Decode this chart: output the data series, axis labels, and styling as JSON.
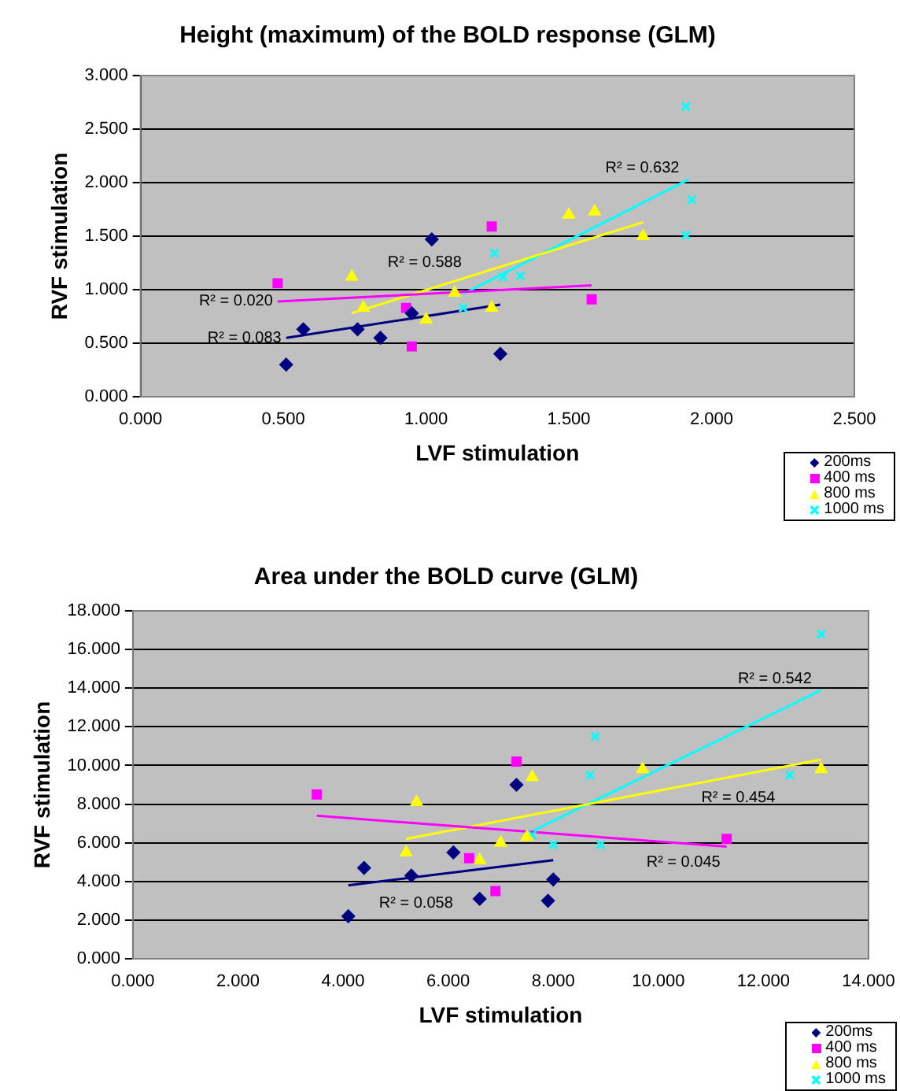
{
  "chart_data": [
    {
      "type": "scatter",
      "title": "Height (maximum) of the BOLD response (GLM)",
      "xlabel": "LVF stimulation",
      "ylabel": "RVF stimulation",
      "xlim": [
        0,
        2.5
      ],
      "xticks": [
        {
          "value": 0,
          "label": "0.000"
        },
        {
          "value": 0.5,
          "label": "0.500"
        },
        {
          "value": 1,
          "label": "1.000"
        },
        {
          "value": 1.5,
          "label": "1.500"
        },
        {
          "value": 2,
          "label": "2.000"
        },
        {
          "value": 2.5,
          "label": "2.500"
        }
      ],
      "ylim": [
        0,
        3
      ],
      "yticks": [
        {
          "value": 0,
          "label": "0.000"
        },
        {
          "value": 0.5,
          "label": "0.500"
        },
        {
          "value": 1,
          "label": "1.000"
        },
        {
          "value": 1.5,
          "label": "1.500"
        },
        {
          "value": 2,
          "label": "2.000"
        },
        {
          "value": 2.5,
          "label": "2.500"
        },
        {
          "value": 3,
          "label": "3.000"
        }
      ],
      "grid": "y",
      "legend": "bottom right",
      "series": [
        {
          "name": "200ms",
          "color": "#000080",
          "marker": "diamond",
          "x": [
            0.51,
            0.57,
            0.76,
            0.84,
            0.95,
            1.02,
            1.26
          ],
          "values": [
            0.3,
            0.63,
            0.63,
            0.55,
            0.78,
            1.47,
            0.4
          ]
        },
        {
          "name": "400 ms",
          "color": "#ff00ff",
          "marker": "square",
          "x": [
            0.48,
            0.93,
            0.95,
            1.23,
            1.58
          ],
          "values": [
            1.06,
            0.83,
            0.47,
            1.59,
            0.91
          ]
        },
        {
          "name": "800 ms",
          "color": "#ffff00",
          "marker": "triangle",
          "x": [
            0.74,
            0.78,
            1.0,
            1.1,
            1.23,
            1.5,
            1.59,
            1.76
          ],
          "values": [
            1.12,
            0.83,
            0.72,
            0.97,
            0.83,
            1.7,
            1.73,
            1.5
          ]
        },
        {
          "name": "1000 ms",
          "color": "#00ffff",
          "marker": "cross",
          "x": [
            1.13,
            1.24,
            1.27,
            1.33,
            1.91,
            1.93,
            1.91
          ],
          "values": [
            0.83,
            1.34,
            1.12,
            1.13,
            2.71,
            1.84,
            1.51
          ]
        },
        {
          "type": "line",
          "color": "#000080",
          "marker": "none",
          "x": [
            0.51,
            1.26
          ],
          "values": [
            0.55,
            0.86
          ]
        },
        {
          "type": "line",
          "color": "#ff00ff",
          "marker": "none",
          "x": [
            0.48,
            1.58
          ],
          "values": [
            0.89,
            1.04
          ]
        },
        {
          "type": "line",
          "color": "#ffff00",
          "marker": "none",
          "x": [
            0.74,
            1.76
          ],
          "values": [
            0.78,
            1.63
          ]
        },
        {
          "type": "line",
          "color": "#00ffff",
          "marker": "none",
          "x": [
            1.13,
            1.92
          ],
          "values": [
            0.96,
            2.03
          ]
        }
      ],
      "annotations": [
        "R² = 0.083",
        "R² = 0.020",
        "R² = 0.588",
        "R² = 0.632"
      ]
    },
    {
      "type": "scatter",
      "title": "Area under the BOLD curve (GLM)",
      "xlabel": "LVF stimulation",
      "ylabel": "RVF stimulation",
      "xlim": [
        0,
        14
      ],
      "xticks": [
        {
          "value": 0,
          "label": "0.000"
        },
        {
          "value": 2,
          "label": "2.000"
        },
        {
          "value": 4,
          "label": "4.000"
        },
        {
          "value": 6,
          "label": "6.000"
        },
        {
          "value": 8,
          "label": "8.000"
        },
        {
          "value": 10,
          "label": "10.000"
        },
        {
          "value": 12,
          "label": "12.000"
        },
        {
          "value": 14,
          "label": "14.000"
        }
      ],
      "ylim": [
        0,
        18
      ],
      "yticks": [
        {
          "value": 0,
          "label": "0.000"
        },
        {
          "value": 2,
          "label": "2.000"
        },
        {
          "value": 4,
          "label": "4.000"
        },
        {
          "value": 6,
          "label": "6.000"
        },
        {
          "value": 8,
          "label": "8.000"
        },
        {
          "value": 10,
          "label": "10.000"
        },
        {
          "value": 12,
          "label": "12.000"
        },
        {
          "value": 14,
          "label": "14.000"
        },
        {
          "value": 16,
          "label": "16.000"
        },
        {
          "value": 18,
          "label": "18.000"
        }
      ],
      "grid": "y",
      "legend": "bottom right",
      "series": [
        {
          "name": "200ms",
          "color": "#000080",
          "marker": "diamond",
          "x": [
            4.1,
            4.4,
            5.3,
            6.1,
            6.6,
            7.3,
            7.9,
            8.0
          ],
          "values": [
            2.2,
            4.7,
            4.3,
            5.5,
            3.1,
            9.0,
            3.0,
            4.1
          ]
        },
        {
          "name": "400 ms",
          "color": "#ff00ff",
          "marker": "square",
          "x": [
            3.5,
            6.4,
            6.9,
            7.3,
            11.3
          ],
          "values": [
            8.5,
            5.2,
            3.5,
            10.2,
            6.2
          ]
        },
        {
          "name": "800 ms",
          "color": "#ffff00",
          "marker": "triangle",
          "x": [
            5.2,
            5.4,
            6.6,
            7.0,
            7.5,
            7.6,
            9.7,
            13.1
          ],
          "values": [
            5.5,
            8.1,
            5.1,
            6.0,
            6.3,
            9.4,
            9.8,
            9.8
          ]
        },
        {
          "name": "1000 ms",
          "color": "#00ffff",
          "marker": "cross",
          "x": [
            7.6,
            8.0,
            8.8,
            8.7,
            8.9,
            12.5,
            13.1
          ],
          "values": [
            6.4,
            5.9,
            11.5,
            9.5,
            5.9,
            9.5,
            16.8
          ]
        },
        {
          "type": "line",
          "color": "#000080",
          "marker": "none",
          "x": [
            4.1,
            8.0
          ],
          "values": [
            3.8,
            5.1
          ]
        },
        {
          "type": "line",
          "color": "#ff00ff",
          "marker": "none",
          "x": [
            3.5,
            11.3
          ],
          "values": [
            7.4,
            5.8
          ]
        },
        {
          "type": "line",
          "color": "#ffff00",
          "marker": "none",
          "x": [
            5.2,
            13.1
          ],
          "values": [
            6.2,
            10.3
          ]
        },
        {
          "type": "line",
          "color": "#00ffff",
          "marker": "none",
          "x": [
            7.6,
            13.1
          ],
          "values": [
            6.6,
            13.9
          ]
        }
      ],
      "annotations": [
        "R² = 0.058",
        "R² = 0.045",
        "R² = 0.454",
        "R² = 0.542"
      ]
    }
  ]
}
